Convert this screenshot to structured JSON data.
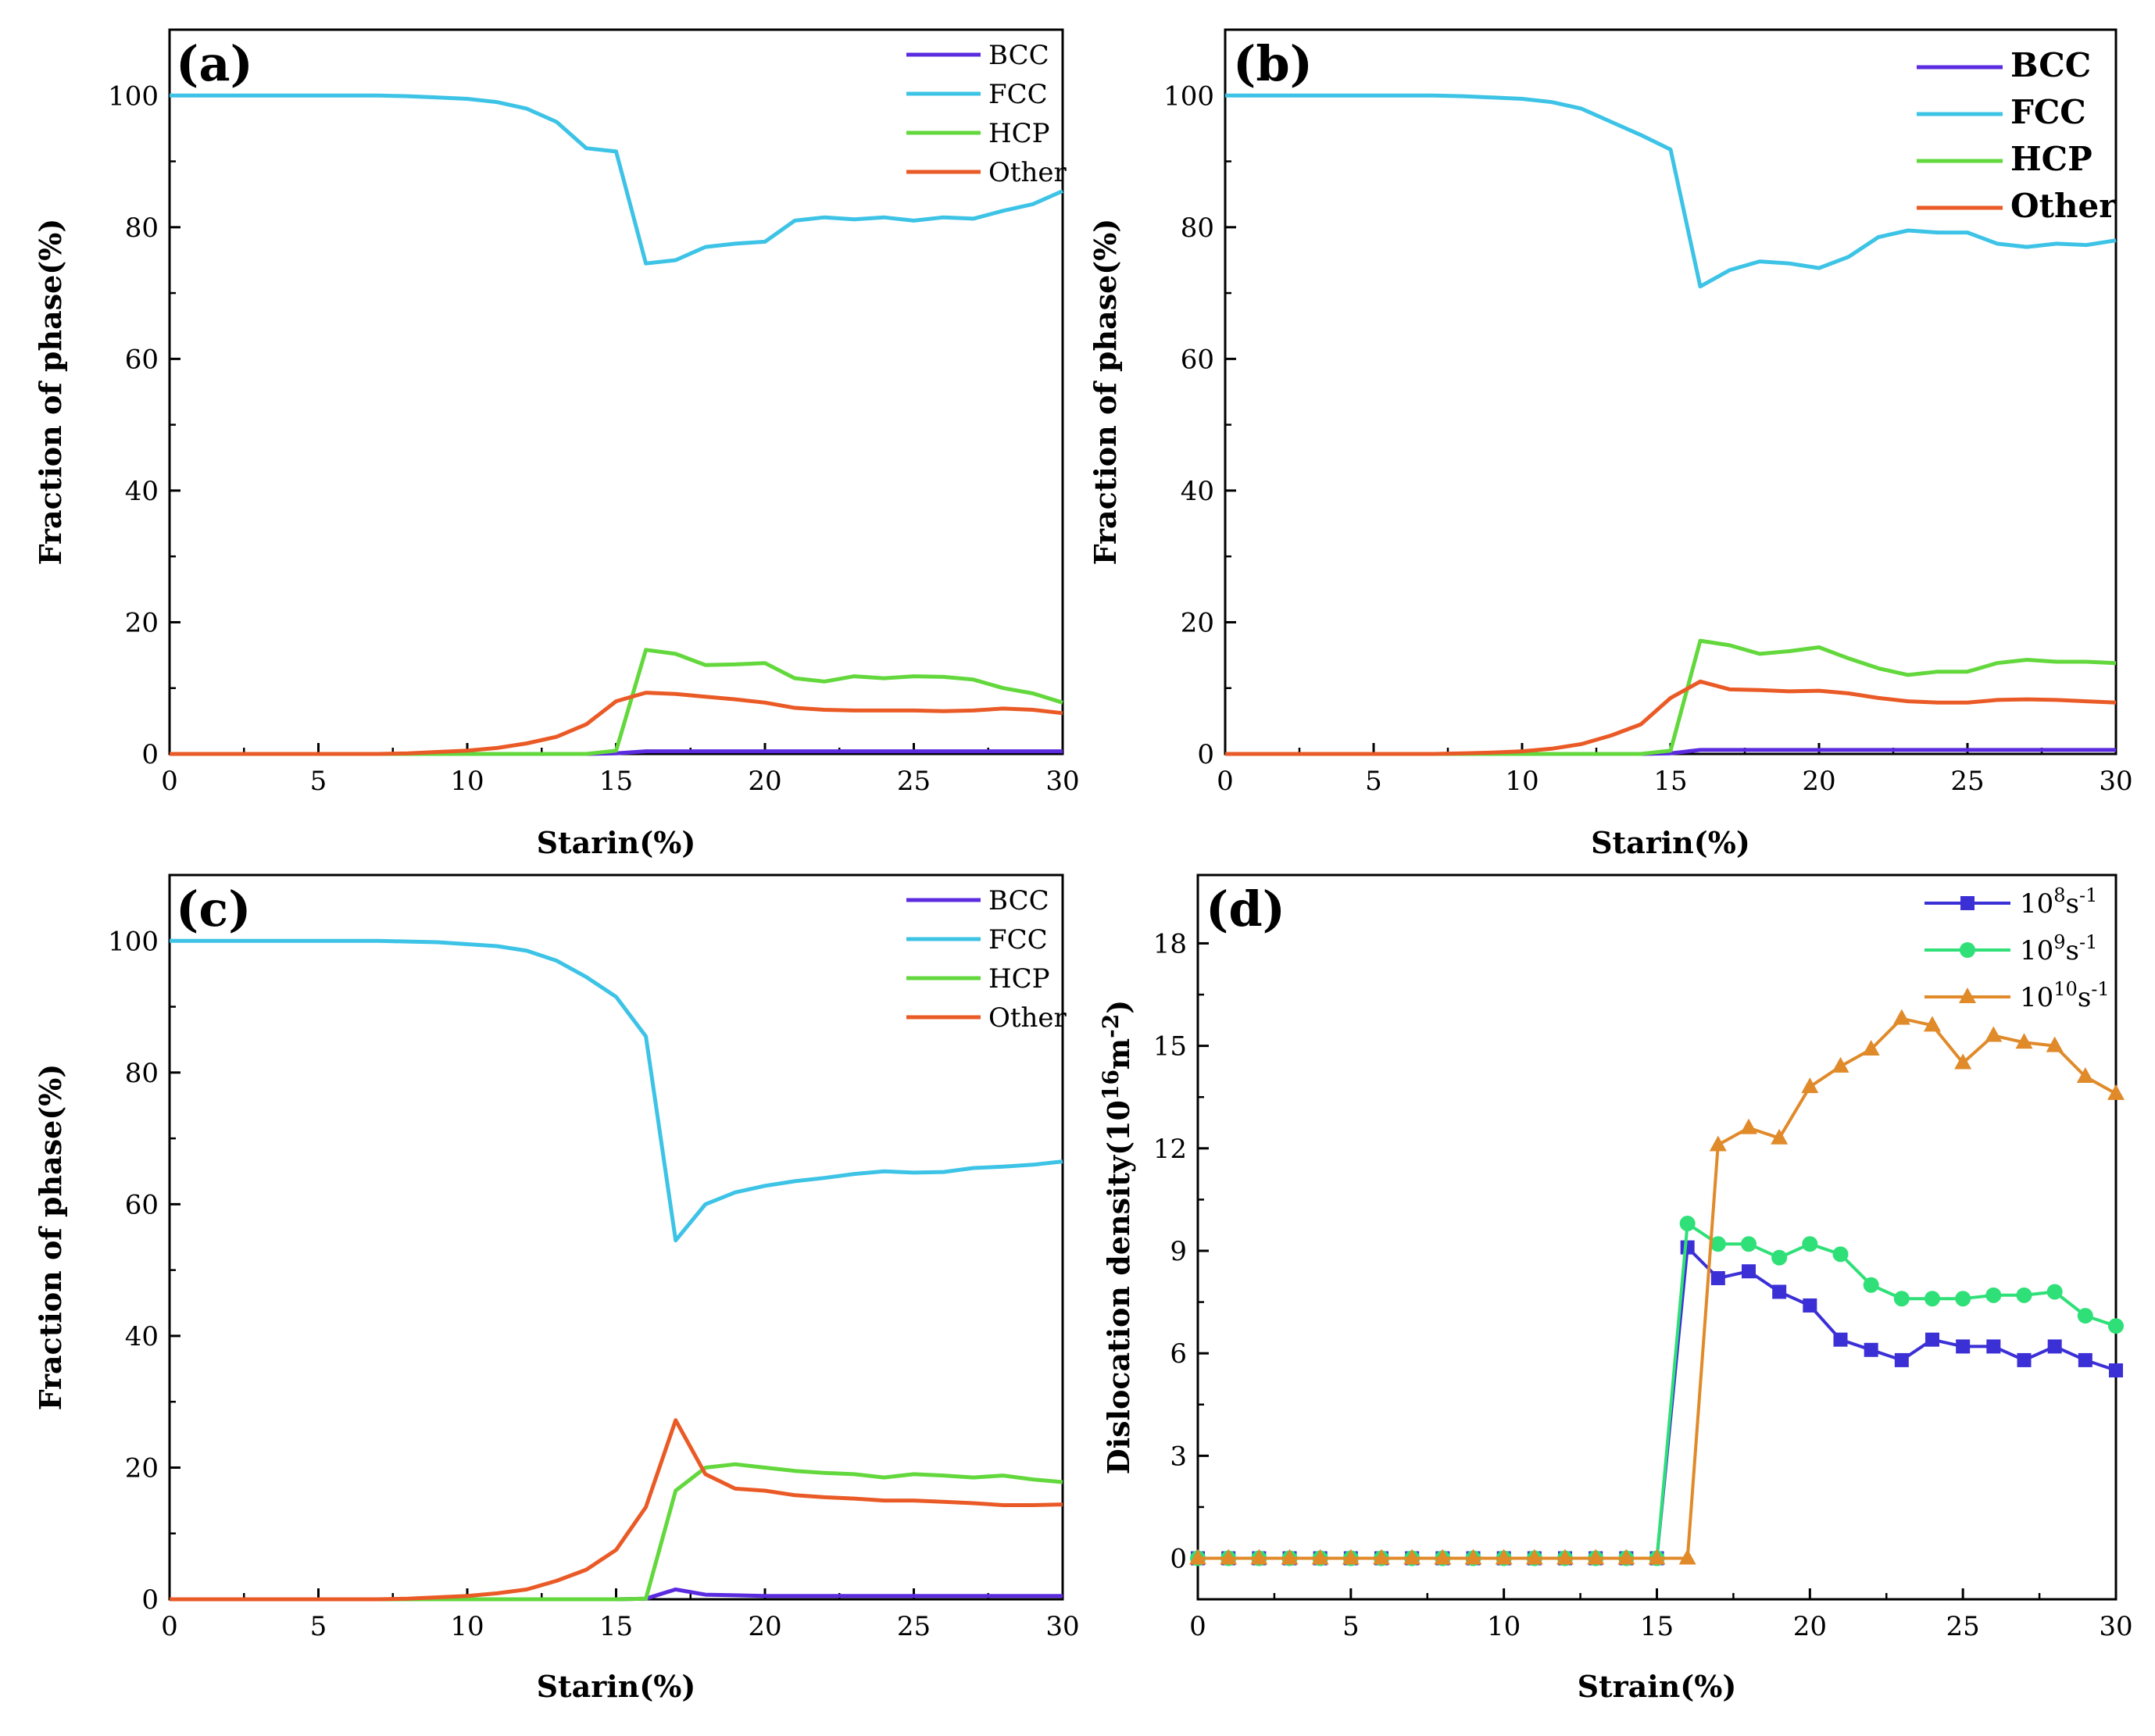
{
  "chart_data": [
    {
      "id": "a",
      "type": "line",
      "panel_label": "(a)",
      "xlabel": "Starin(%)",
      "ylabel": "Fraction of phase(%)",
      "xlim": [
        0,
        30
      ],
      "ylim": [
        0,
        110
      ],
      "xticks": [
        0,
        5,
        10,
        15,
        20,
        25,
        30
      ],
      "yticks": [
        0,
        20,
        40,
        60,
        80,
        100
      ],
      "legend_position": "top-right",
      "legend_style": "small",
      "x": [
        0,
        1,
        2,
        3,
        4,
        5,
        6,
        7,
        8,
        9,
        10,
        11,
        12,
        13,
        14,
        15,
        16,
        17,
        18,
        19,
        20,
        21,
        22,
        23,
        24,
        25,
        26,
        27,
        28,
        29,
        30
      ],
      "series": [
        {
          "name": "BCC",
          "color": "#5b2be0",
          "values": [
            0,
            0,
            0,
            0,
            0,
            0,
            0,
            0,
            0,
            0,
            0,
            0,
            0,
            0,
            0,
            0.1,
            0.4,
            0.4,
            0.4,
            0.4,
            0.4,
            0.4,
            0.4,
            0.4,
            0.4,
            0.4,
            0.4,
            0.4,
            0.4,
            0.4,
            0.4
          ]
        },
        {
          "name": "FCC",
          "color": "#3cc3e6",
          "values": [
            100,
            100,
            100,
            100,
            100,
            100,
            100,
            100,
            99.9,
            99.7,
            99.5,
            99,
            98,
            96,
            92,
            91.5,
            74.5,
            75,
            77,
            77.5,
            77.8,
            81,
            81.5,
            81.2,
            81.5,
            81,
            81.5,
            81.3,
            82.5,
            83.5,
            85.5
          ]
        },
        {
          "name": "HCP",
          "color": "#62d83c",
          "values": [
            0,
            0,
            0,
            0,
            0,
            0,
            0,
            0,
            0,
            0,
            0,
            0,
            0,
            0,
            0,
            0.5,
            15.8,
            15.2,
            13.5,
            13.6,
            13.8,
            11.5,
            11,
            11.8,
            11.5,
            11.8,
            11.7,
            11.3,
            10,
            9.2,
            7.8
          ]
        },
        {
          "name": "Other",
          "color": "#ea5a26",
          "values": [
            0,
            0,
            0,
            0,
            0,
            0,
            0,
            0,
            0.1,
            0.3,
            0.5,
            0.9,
            1.6,
            2.6,
            4.5,
            8,
            9.3,
            9.1,
            8.7,
            8.3,
            7.8,
            7,
            6.7,
            6.6,
            6.6,
            6.6,
            6.5,
            6.6,
            6.9,
            6.7,
            6.2
          ]
        }
      ]
    },
    {
      "id": "b",
      "type": "line",
      "panel_label": "(b)",
      "xlabel": "Starin(%)",
      "ylabel": "Fraction of phase(%)",
      "xlim": [
        0,
        30
      ],
      "ylim": [
        0,
        110
      ],
      "xticks": [
        0,
        5,
        10,
        15,
        20,
        25,
        30
      ],
      "yticks": [
        0,
        20,
        40,
        60,
        80,
        100
      ],
      "legend_position": "top-right",
      "legend_style": "large",
      "x": [
        0,
        1,
        2,
        3,
        4,
        5,
        6,
        7,
        8,
        9,
        10,
        11,
        12,
        13,
        14,
        15,
        16,
        17,
        18,
        19,
        20,
        21,
        22,
        23,
        24,
        25,
        26,
        27,
        28,
        29,
        30
      ],
      "series": [
        {
          "name": "BCC",
          "color": "#5b2be0",
          "values": [
            0,
            0,
            0,
            0,
            0,
            0,
            0,
            0,
            0,
            0,
            0,
            0,
            0,
            0,
            0,
            0.1,
            0.6,
            0.6,
            0.6,
            0.6,
            0.6,
            0.6,
            0.6,
            0.6,
            0.6,
            0.6,
            0.6,
            0.6,
            0.6,
            0.6,
            0.6
          ]
        },
        {
          "name": "FCC",
          "color": "#3cc3e6",
          "values": [
            100,
            100,
            100,
            100,
            100,
            100,
            100,
            100,
            99.9,
            99.7,
            99.5,
            99,
            98,
            96,
            94,
            91.8,
            71,
            73.5,
            74.8,
            74.5,
            73.8,
            75.5,
            78.5,
            79.5,
            79.2,
            79.2,
            77.5,
            77,
            77.5,
            77.3,
            78
          ]
        },
        {
          "name": "HCP",
          "color": "#62d83c",
          "values": [
            0,
            0,
            0,
            0,
            0,
            0,
            0,
            0,
            0,
            0,
            0,
            0,
            0,
            0,
            0,
            0.5,
            17.2,
            16.5,
            15.2,
            15.6,
            16.2,
            14.5,
            13,
            12,
            12.5,
            12.5,
            13.8,
            14.3,
            14,
            14,
            13.8
          ]
        },
        {
          "name": "Other",
          "color": "#ea5a26",
          "values": [
            0,
            0,
            0,
            0,
            0,
            0,
            0,
            0,
            0.1,
            0.2,
            0.4,
            0.8,
            1.5,
            2.8,
            4.5,
            8.5,
            11,
            9.8,
            9.7,
            9.5,
            9.6,
            9.2,
            8.5,
            8,
            7.8,
            7.8,
            8.2,
            8.3,
            8.2,
            8,
            7.8
          ]
        }
      ]
    },
    {
      "id": "c",
      "type": "line",
      "panel_label": "(c)",
      "xlabel": "Starin(%)",
      "ylabel": "Fraction of phase(%)",
      "xlim": [
        0,
        30
      ],
      "ylim": [
        0,
        110
      ],
      "xticks": [
        0,
        5,
        10,
        15,
        20,
        25,
        30
      ],
      "yticks": [
        0,
        20,
        40,
        60,
        80,
        100
      ],
      "legend_position": "top-right",
      "legend_style": "small",
      "x": [
        0,
        1,
        2,
        3,
        4,
        5,
        6,
        7,
        8,
        9,
        10,
        11,
        12,
        13,
        14,
        15,
        16,
        17,
        18,
        19,
        20,
        21,
        22,
        23,
        24,
        25,
        26,
        27,
        28,
        29,
        30
      ],
      "series": [
        {
          "name": "BCC",
          "color": "#5b2be0",
          "values": [
            0,
            0,
            0,
            0,
            0,
            0,
            0,
            0,
            0,
            0,
            0,
            0,
            0,
            0,
            0,
            0,
            0.1,
            1.5,
            0.7,
            0.6,
            0.5,
            0.5,
            0.5,
            0.5,
            0.5,
            0.5,
            0.5,
            0.5,
            0.5,
            0.5,
            0.5
          ]
        },
        {
          "name": "FCC",
          "color": "#3cc3e6",
          "values": [
            100,
            100,
            100,
            100,
            100,
            100,
            100,
            100,
            99.9,
            99.8,
            99.5,
            99.2,
            98.5,
            97,
            94.5,
            91.5,
            85.5,
            54.5,
            60,
            61.8,
            62.8,
            63.5,
            64,
            64.6,
            65,
            64.8,
            64.9,
            65.5,
            65.7,
            66,
            66.5
          ]
        },
        {
          "name": "HCP",
          "color": "#62d83c",
          "values": [
            0,
            0,
            0,
            0,
            0,
            0,
            0,
            0,
            0,
            0,
            0,
            0,
            0,
            0,
            0,
            0,
            0.1,
            16.5,
            20,
            20.5,
            20,
            19.5,
            19.2,
            19,
            18.5,
            19,
            18.8,
            18.5,
            18.8,
            18.2,
            17.8
          ]
        },
        {
          "name": "Other",
          "color": "#ea5a26",
          "values": [
            0,
            0,
            0,
            0,
            0,
            0,
            0,
            0,
            0.1,
            0.3,
            0.5,
            0.9,
            1.5,
            2.8,
            4.5,
            7.5,
            14,
            27.2,
            19,
            16.8,
            16.5,
            15.8,
            15.5,
            15.3,
            15,
            15,
            14.8,
            14.6,
            14.3,
            14.3,
            14.4
          ]
        }
      ]
    },
    {
      "id": "d",
      "type": "line",
      "panel_label": "(d)",
      "xlabel": "Strain(%)",
      "ylabel_main": "Dislocation density(10",
      "ylabel_sup": "16",
      "ylabel_unit": "m",
      "ylabel_unit_sup": "-2",
      "ylabel_close": ")",
      "xlim": [
        0,
        30
      ],
      "ylim": [
        -1.2,
        20
      ],
      "xticks": [
        0,
        5,
        10,
        15,
        20,
        25,
        30
      ],
      "yticks": [
        0,
        3,
        6,
        9,
        12,
        15,
        18
      ],
      "legend_position": "top-right",
      "legend_unit": "s",
      "legend_unit_sup": "-1",
      "x": [
        0,
        1,
        2,
        3,
        4,
        5,
        6,
        7,
        8,
        9,
        10,
        11,
        12,
        13,
        14,
        15,
        16,
        17,
        18,
        19,
        20,
        21,
        22,
        23,
        24,
        25,
        26,
        27,
        28,
        29,
        30
      ],
      "series": [
        {
          "name_base": "10",
          "name_exp": "8",
          "marker": "square",
          "color": "#3b2fd6",
          "values": [
            0,
            0,
            0,
            0,
            0,
            0,
            0,
            0,
            0,
            0,
            0,
            0,
            0,
            0,
            0,
            0,
            9.1,
            8.2,
            8.4,
            7.8,
            7.4,
            6.4,
            6.1,
            5.8,
            6.4,
            6.2,
            6.2,
            5.8,
            6.2,
            5.8,
            5.5
          ]
        },
        {
          "name_base": "10",
          "name_exp": "9",
          "marker": "circle",
          "color": "#2ee077",
          "values": [
            0,
            0,
            0,
            0,
            0,
            0,
            0,
            0,
            0,
            0,
            0,
            0,
            0,
            0,
            0,
            0,
            9.8,
            9.2,
            9.2,
            8.8,
            9.2,
            8.9,
            8,
            7.6,
            7.6,
            7.6,
            7.7,
            7.7,
            7.8,
            7.1,
            6.8
          ]
        },
        {
          "name_base": "10",
          "name_exp": "10",
          "marker": "triangle",
          "color": "#e08a2a",
          "values": [
            0,
            0,
            0,
            0,
            0,
            0,
            0,
            0,
            0,
            0,
            0,
            0,
            0,
            0,
            0,
            0,
            0,
            12.1,
            12.6,
            12.3,
            13.8,
            14.4,
            14.9,
            15.8,
            15.6,
            14.5,
            15.3,
            15.1,
            15,
            14.1,
            13.6
          ]
        }
      ]
    }
  ]
}
